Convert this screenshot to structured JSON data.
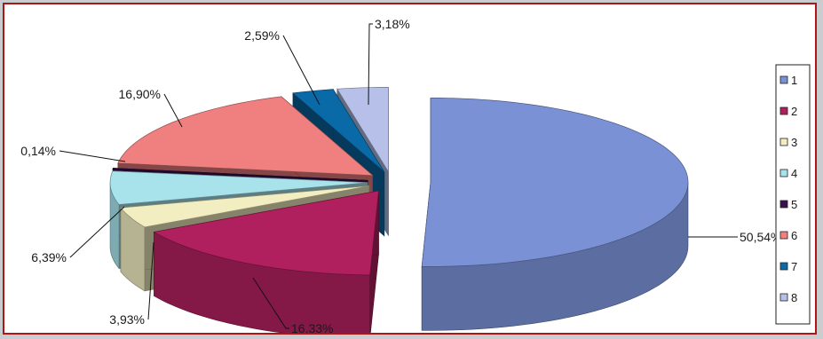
{
  "chart_data": {
    "type": "pie",
    "style": "3d-exploded",
    "categories": [
      "1",
      "2",
      "3",
      "4",
      "5",
      "6",
      "7",
      "8"
    ],
    "values": [
      50.54,
      16.33,
      3.93,
      6.39,
      0.14,
      16.9,
      2.59,
      3.18
    ],
    "data_labels": [
      "50,54%",
      "16,33%",
      "3,93%",
      "6,39%",
      "0,14%",
      "16,90%",
      "2,59%",
      "3,18%"
    ],
    "colors": [
      "#7b91d6",
      "#b0205e",
      "#f3eec2",
      "#a8e3ec",
      "#3a0f4a",
      "#f08080",
      "#0a6aa8",
      "#b6c0e8"
    ],
    "legend": {
      "position": "right",
      "entries": [
        "1",
        "2",
        "3",
        "4",
        "5",
        "6",
        "7",
        "8"
      ]
    },
    "title": "",
    "xlabel": "",
    "ylabel": ""
  },
  "colors": {
    "frame_border": "#b01515",
    "background": "#c9cdcf"
  }
}
